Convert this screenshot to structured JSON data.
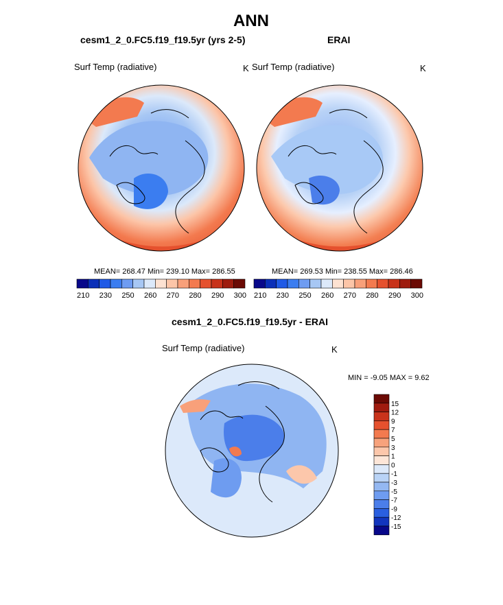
{
  "header": {
    "title": "ANN"
  },
  "panels": {
    "left": {
      "title": "cesm1_2_0.FC5.f19_f19.5yr (yrs 2-5)",
      "variable": "Surf Temp (radiative)",
      "unit": "K",
      "stats": "MEAN= 268.47  Min= 239.10  Max= 286.55"
    },
    "right": {
      "title": "ERAI",
      "variable": "Surf Temp (radiative)",
      "unit": "K",
      "stats": "MEAN= 269.53  Min= 238.55  Max= 286.46"
    },
    "diff": {
      "title": "cesm1_2_0.FC5.f19_f19.5yr - ERAI",
      "variable": "Surf Temp (radiative)",
      "unit": "K",
      "minmax": "MIN =  -9.05 MAX =   9.62"
    }
  },
  "colorbars": {
    "abs": {
      "colors": [
        "#08088a",
        "#0a2fb8",
        "#1f5ae6",
        "#3b7df0",
        "#6e9cf2",
        "#a7c7f4",
        "#dce9fa",
        "#fde2d2",
        "#fcc5a8",
        "#f8a07a",
        "#f37a4f",
        "#e5512e",
        "#c8321a",
        "#9e1c0e",
        "#6b0a04"
      ],
      "ticks": [
        "210",
        "230",
        "250",
        "260",
        "270",
        "280",
        "290",
        "300"
      ]
    },
    "diff": {
      "colors": [
        "#6b0a04",
        "#a01b0f",
        "#c9331b",
        "#e5512e",
        "#f37a4f",
        "#f7a27c",
        "#fcc7ab",
        "#fde6d8",
        "#dce9fa",
        "#b9d3f6",
        "#94b8f2",
        "#6e9cf0",
        "#4b7eea",
        "#2a5fe0",
        "#1235be",
        "#08088a"
      ],
      "labels": [
        "15",
        "12",
        "9",
        "7",
        "5",
        "3",
        "1",
        "0",
        "-1",
        "-3",
        "-5",
        "-7",
        "-9",
        "-12",
        "-15"
      ]
    }
  }
}
